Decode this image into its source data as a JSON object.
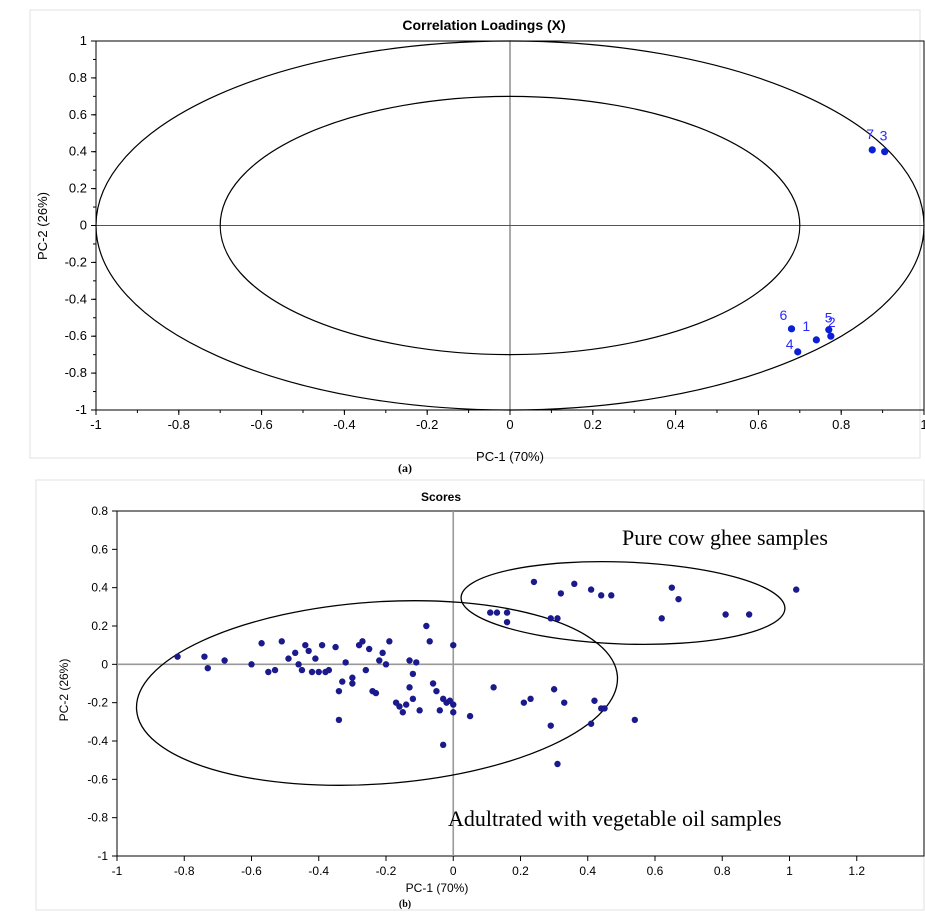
{
  "chart_data": [
    {
      "type": "scatter",
      "title": "Correlation Loadings (X)",
      "xlabel": "PC-1 (70%)",
      "ylabel": "PC-2 (26%)",
      "caption": "(a)",
      "xlim": [
        -1,
        1
      ],
      "ylim": [
        -1,
        1
      ],
      "x_ticks": [
        "-1",
        "-0.8",
        "-0.6",
        "-0.4",
        "-0.2",
        "0",
        "0.2",
        "0.4",
        "0.6",
        "0.8",
        "1"
      ],
      "y_ticks": [
        "1",
        "0.8",
        "0.6",
        "0.4",
        "0.2",
        "0",
        "-0.2",
        "-0.4",
        "-0.6",
        "-0.8",
        "-1"
      ],
      "ellipses": [
        {
          "rx": 1.0,
          "ry": 1.0
        },
        {
          "rx": 0.7,
          "ry": 0.7
        }
      ],
      "color": "#0a1fd6",
      "label_color": "#2b2bff",
      "points": [
        {
          "label": "1",
          "x": 0.74,
          "y": -0.62
        },
        {
          "label": "2",
          "x": 0.775,
          "y": -0.6
        },
        {
          "label": "3",
          "x": 0.905,
          "y": 0.4
        },
        {
          "label": "4",
          "x": 0.695,
          "y": -0.685
        },
        {
          "label": "5",
          "x": 0.77,
          "y": -0.565
        },
        {
          "label": "6",
          "x": 0.68,
          "y": -0.56
        },
        {
          "label": "7",
          "x": 0.875,
          "y": 0.41
        }
      ]
    },
    {
      "type": "scatter",
      "title": "Scores",
      "xlabel": "PC-1 (70%)",
      "ylabel": "PC-2 (26%)",
      "caption": "(b)",
      "xlim": [
        -1,
        1.4
      ],
      "ylim": [
        -1,
        0.8
      ],
      "x_ticks": [
        "-1",
        "-0.8",
        "-0.6",
        "-0.4",
        "-0.2",
        "0",
        "0.2",
        "0.4",
        "0.6",
        "0.8",
        "1",
        "1.2"
      ],
      "y_ticks": [
        "0.8",
        "0.6",
        "0.4",
        "0.2",
        "0",
        "-0.2",
        "-0.4",
        "-0.6",
        "-0.8",
        "-1"
      ],
      "color": "#1a1a8c",
      "annotations": [
        "Pure cow ghee samples",
        "Adultrated with vegetable oil samples"
      ],
      "groups": [
        {
          "name": "Pure cow ghee samples",
          "points": [
            [
              0.11,
              0.27
            ],
            [
              0.13,
              0.27
            ],
            [
              0.16,
              0.22
            ],
            [
              0.16,
              0.27
            ],
            [
              0.24,
              0.43
            ],
            [
              0.29,
              0.24
            ],
            [
              0.31,
              0.24
            ],
            [
              0.32,
              0.37
            ],
            [
              0.36,
              0.42
            ],
            [
              0.41,
              0.39
            ],
            [
              0.44,
              0.36
            ],
            [
              0.47,
              0.36
            ],
            [
              0.62,
              0.24
            ],
            [
              0.65,
              0.4
            ],
            [
              0.67,
              0.34
            ],
            [
              0.81,
              0.26
            ],
            [
              0.88,
              0.26
            ],
            [
              1.02,
              0.39
            ]
          ]
        },
        {
          "name": "Adultrated with vegetable oil samples",
          "points": [
            [
              -0.82,
              0.04
            ],
            [
              -0.74,
              0.04
            ],
            [
              -0.73,
              -0.02
            ],
            [
              -0.68,
              0.02
            ],
            [
              -0.6,
              0.0
            ],
            [
              -0.57,
              0.11
            ],
            [
              -0.55,
              -0.04
            ],
            [
              -0.53,
              -0.03
            ],
            [
              -0.51,
              0.12
            ],
            [
              -0.49,
              0.03
            ],
            [
              -0.47,
              0.06
            ],
            [
              -0.46,
              0.0
            ],
            [
              -0.45,
              -0.03
            ],
            [
              -0.44,
              0.1
            ],
            [
              -0.43,
              0.07
            ],
            [
              -0.42,
              -0.04
            ],
            [
              -0.41,
              0.03
            ],
            [
              -0.4,
              -0.04
            ],
            [
              -0.39,
              0.1
            ],
            [
              -0.38,
              -0.04
            ],
            [
              -0.37,
              -0.03
            ],
            [
              -0.35,
              0.09
            ],
            [
              -0.34,
              -0.14
            ],
            [
              -0.34,
              -0.29
            ],
            [
              -0.33,
              -0.09
            ],
            [
              -0.32,
              0.01
            ],
            [
              -0.3,
              -0.07
            ],
            [
              -0.3,
              -0.1
            ],
            [
              -0.28,
              0.1
            ],
            [
              -0.27,
              0.12
            ],
            [
              -0.26,
              -0.03
            ],
            [
              -0.25,
              0.08
            ],
            [
              -0.24,
              -0.14
            ],
            [
              -0.23,
              -0.15
            ],
            [
              -0.22,
              0.02
            ],
            [
              -0.21,
              0.06
            ],
            [
              -0.2,
              0.0
            ],
            [
              -0.19,
              0.12
            ],
            [
              -0.17,
              -0.2
            ],
            [
              -0.16,
              -0.22
            ],
            [
              -0.15,
              -0.25
            ],
            [
              -0.14,
              -0.21
            ],
            [
              -0.13,
              0.02
            ],
            [
              -0.13,
              -0.12
            ],
            [
              -0.12,
              -0.05
            ],
            [
              -0.12,
              -0.18
            ],
            [
              -0.11,
              0.01
            ],
            [
              -0.1,
              -0.24
            ],
            [
              -0.08,
              0.2
            ],
            [
              -0.07,
              0.12
            ],
            [
              -0.06,
              -0.1
            ],
            [
              -0.05,
              -0.14
            ],
            [
              -0.04,
              -0.24
            ],
            [
              -0.03,
              -0.18
            ],
            [
              -0.03,
              -0.42
            ],
            [
              -0.02,
              -0.2
            ],
            [
              -0.01,
              -0.19
            ],
            [
              0.0,
              0.1
            ],
            [
              0.0,
              -0.21
            ],
            [
              0.0,
              -0.25
            ],
            [
              0.05,
              -0.27
            ],
            [
              0.12,
              -0.12
            ],
            [
              0.21,
              -0.2
            ],
            [
              0.23,
              -0.18
            ],
            [
              0.29,
              -0.32
            ],
            [
              0.3,
              -0.13
            ],
            [
              0.31,
              -0.52
            ],
            [
              0.33,
              -0.2
            ],
            [
              0.41,
              -0.31
            ],
            [
              0.42,
              -0.19
            ],
            [
              0.44,
              -0.23
            ],
            [
              0.45,
              -0.23
            ],
            [
              0.54,
              -0.29
            ]
          ]
        }
      ]
    }
  ]
}
